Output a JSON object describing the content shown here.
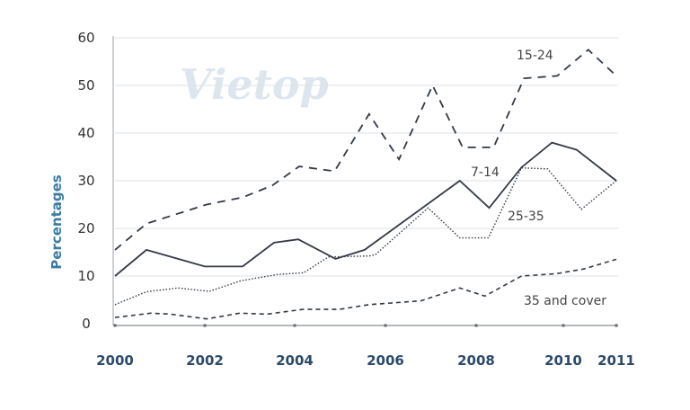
{
  "watermark": "Vietop",
  "chart_data": {
    "type": "line",
    "title": "",
    "xlabel": "",
    "ylabel": "Percentages",
    "ylim": [
      0,
      60
    ],
    "yticks": [
      0,
      10,
      20,
      30,
      40,
      50,
      60
    ],
    "xticks": [
      "2000",
      "2002",
      "2004",
      "2006",
      "2008",
      "2010",
      "2011"
    ],
    "grid": "horizontal",
    "legend": "inline labels",
    "series": [
      {
        "name": "15-24",
        "style": "long-dash",
        "color": "#333a44",
        "x": [
          2000,
          2000.7,
          2002.04,
          2002.84,
          2003.5,
          2004.1,
          2004.88,
          2005.64,
          2006.3,
          2007.04,
          2007.7,
          2008.4,
          2009.1,
          2009.86,
          2010.47,
          2011
        ],
        "y": [
          15.5,
          21,
          25,
          26.5,
          29,
          33,
          32,
          44,
          34.5,
          50,
          37,
          37,
          51.5,
          52,
          57.5,
          52
        ]
      },
      {
        "name": "7-14",
        "style": "solid",
        "color": "#333a44",
        "x": [
          2000,
          2000.7,
          2002,
          2002.84,
          2003.54,
          2004.08,
          2004.9,
          2005.54,
          2007.64,
          2008.3,
          2009.04,
          2009.74,
          2010.25,
          2011
        ],
        "y": [
          10,
          15.5,
          12,
          12,
          17,
          17.7,
          13.6,
          15.5,
          30,
          24.3,
          32.8,
          38,
          36.5,
          30
        ]
      },
      {
        "name": "25-35",
        "style": "dotted",
        "color": "#333a44",
        "x": [
          2000,
          2000.7,
          2001.4,
          2002.1,
          2002.8,
          2003.6,
          2004.2,
          2004.74,
          2005.64,
          2005.78,
          2006.94,
          2007.64,
          2008.28,
          2009.04,
          2009.64,
          2010.34,
          2011
        ],
        "y": [
          4,
          6.7,
          7.5,
          6.8,
          9,
          10.3,
          10.7,
          14,
          14.2,
          14.5,
          24.3,
          18,
          18,
          32.7,
          32.5,
          24,
          30
        ]
      },
      {
        "name": "35 and cover",
        "style": "short-dash",
        "color": "#333a44",
        "x": [
          2000,
          2000.8,
          2001.24,
          2002.04,
          2002.78,
          2003.38,
          2004.18,
          2004.98,
          2005.64,
          2006.78,
          2007.64,
          2008.2,
          2009.04,
          2009.84,
          2010.39,
          2011
        ],
        "y": [
          1.3,
          2.2,
          2,
          1,
          2.2,
          2,
          3,
          3,
          4,
          4.8,
          7.5,
          5.8,
          10,
          10.5,
          11.5,
          13.5
        ]
      }
    ]
  }
}
